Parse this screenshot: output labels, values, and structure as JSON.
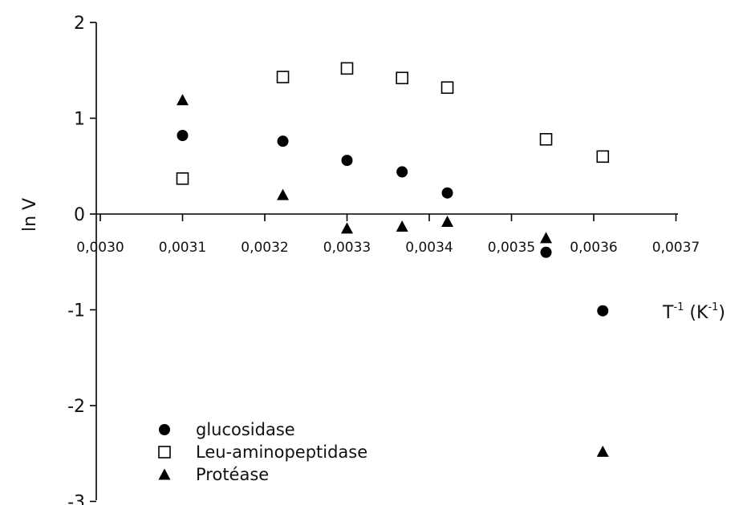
{
  "chart_data": {
    "type": "scatter",
    "title": "",
    "xlabel": "T",
    "xlabel_exp1": "-1",
    "xlabel_unit_open": " (K",
    "xlabel_exp2": "-1",
    "xlabel_unit_close": ")",
    "ylabel": "ln V",
    "xlim": [
      0.003,
      0.0037
    ],
    "ylim": [
      -3,
      2
    ],
    "x_ticks": [
      0.003,
      0.0031,
      0.0032,
      0.0033,
      0.0034,
      0.0035,
      0.0036,
      0.0037
    ],
    "x_tick_labels": [
      "0,0030",
      "0,0031",
      "0,0032",
      "0,0033",
      "0,0034",
      "0,0035",
      "0,0036",
      "0,0037"
    ],
    "y_ticks": [
      -3,
      -2,
      -1,
      0,
      1,
      2
    ],
    "y_tick_labels": [
      "-3",
      "-2",
      "-1",
      "0",
      "1",
      "2"
    ],
    "grid": false,
    "legend_position": "bottom-left",
    "series": [
      {
        "name": "glucosidase",
        "marker": "circle-filled",
        "color": "#000000",
        "x": [
          0.0031,
          0.003222,
          0.0033,
          0.003367,
          0.003422,
          0.003542,
          0.003611
        ],
        "y": [
          0.82,
          0.76,
          0.56,
          0.44,
          0.22,
          -0.4,
          -1.01
        ]
      },
      {
        "name": "Leu-aminopeptidase",
        "marker": "square-open",
        "color": "#000000",
        "x": [
          0.0031,
          0.003222,
          0.0033,
          0.003367,
          0.003422,
          0.003542,
          0.003611
        ],
        "y": [
          0.37,
          1.43,
          1.52,
          1.42,
          1.32,
          0.78,
          0.6
        ]
      },
      {
        "name": "Protéase",
        "marker": "triangle-filled",
        "color": "#000000",
        "x": [
          0.0031,
          0.003222,
          0.0033,
          0.003367,
          0.003422,
          0.003542,
          0.003611
        ],
        "y": [
          1.19,
          0.2,
          -0.15,
          -0.13,
          -0.08,
          -0.25,
          -2.48
        ]
      }
    ]
  }
}
